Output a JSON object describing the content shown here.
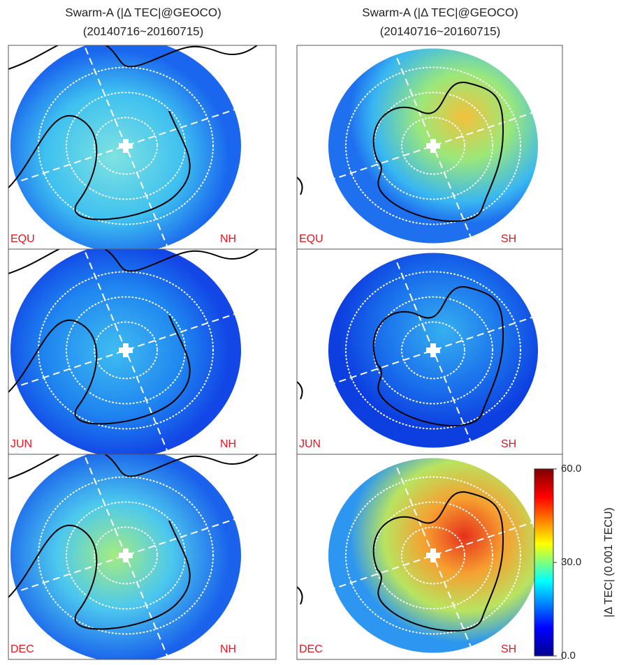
{
  "titles": [
    {
      "line1": "Swarm-A (|Δ TEC|@GEOCO)",
      "line2": "(20140716~20160715)"
    },
    {
      "line1": "Swarm-A (|Δ TEC|@GEOCO)",
      "line2": "(20140716~20160715)"
    }
  ],
  "panels": [
    {
      "season": "EQU",
      "hemisphere": "NH"
    },
    {
      "season": "EQU",
      "hemisphere": "SH"
    },
    {
      "season": "JUN",
      "hemisphere": "NH"
    },
    {
      "season": "JUN",
      "hemisphere": "SH"
    },
    {
      "season": "DEC",
      "hemisphere": "NH"
    },
    {
      "season": "DEC",
      "hemisphere": "SH"
    }
  ],
  "colorbar": {
    "label": "|Δ TEC| (0.001 TECU)",
    "range": [
      0,
      60
    ],
    "ticks": [
      {
        "value": 0,
        "label": "0.0"
      },
      {
        "value": 30,
        "label": "30.0"
      },
      {
        "value": 60,
        "label": "60.0"
      }
    ]
  }
}
